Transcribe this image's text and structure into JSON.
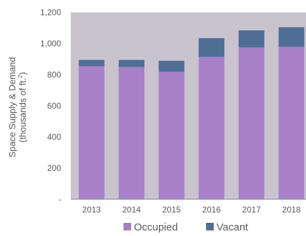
{
  "chart_data": {
    "type": "bar",
    "stacked": true,
    "categories": [
      "2013",
      "2014",
      "2015",
      "2016",
      "2017",
      "2018"
    ],
    "series": [
      {
        "name": "Occupied",
        "values": [
          855,
          850,
          820,
          915,
          975,
          980
        ],
        "color": "#a87fc9"
      },
      {
        "name": "Vacant",
        "values": [
          40,
          45,
          70,
          120,
          110,
          125
        ],
        "color": "#4f6e96"
      }
    ],
    "ylabel": "Space Supply & Demand",
    "ylabel_units_prefix": "(thousands of ft.",
    "ylabel_units_sup": "2",
    "ylabel_units_suffix": ")",
    "ylim": [
      0,
      1200
    ],
    "yticks": [
      0,
      200,
      400,
      600,
      800,
      1000,
      1200
    ],
    "ytick_labels": [
      "-",
      "200",
      "400",
      "600",
      "800",
      "1,000",
      "1,200"
    ],
    "plot_background": "#c8c3cc",
    "grid": false,
    "legend_position": "bottom"
  }
}
